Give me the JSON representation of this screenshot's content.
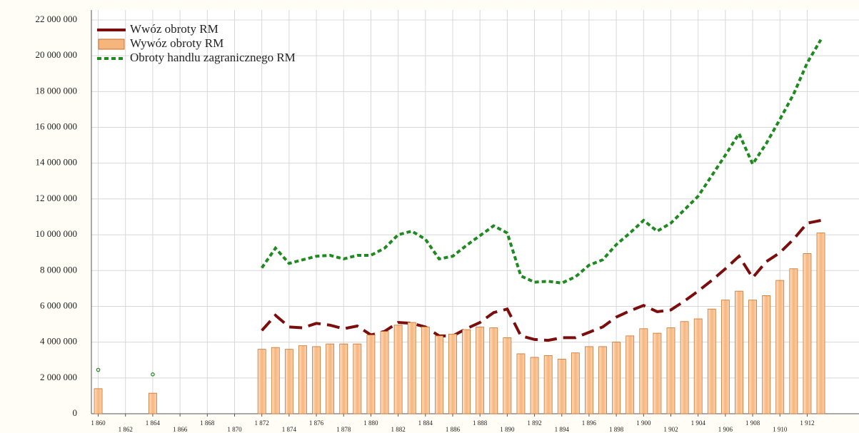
{
  "chart_data": {
    "type": "combo",
    "x": [
      1860,
      1861,
      1862,
      1863,
      1864,
      1865,
      1866,
      1867,
      1868,
      1869,
      1870,
      1871,
      1872,
      1873,
      1874,
      1875,
      1876,
      1877,
      1878,
      1879,
      1880,
      1881,
      1882,
      1883,
      1884,
      1885,
      1886,
      1887,
      1888,
      1889,
      1890,
      1891,
      1892,
      1893,
      1894,
      1895,
      1896,
      1897,
      1898,
      1899,
      1900,
      1901,
      1902,
      1903,
      1904,
      1905,
      1906,
      1907,
      1908,
      1909,
      1910,
      1911,
      1912,
      1913
    ],
    "series": [
      {
        "name": "Wwóz obroty RM",
        "type": "line",
        "dash": "dashed",
        "color": "#7b0d0d",
        "values": [
          null,
          null,
          null,
          null,
          null,
          null,
          null,
          null,
          null,
          null,
          null,
          null,
          4650000,
          5500000,
          4850000,
          4800000,
          5050000,
          4950000,
          4750000,
          4900000,
          4400000,
          4600000,
          5100000,
          5050000,
          4850000,
          4350000,
          4350000,
          4750000,
          5100000,
          5650000,
          5850000,
          4350000,
          4150000,
          4100000,
          4250000,
          4250000,
          4550000,
          4850000,
          5400000,
          5750000,
          6050000,
          5700000,
          5800000,
          6300000,
          6850000,
          7450000,
          8100000,
          8800000,
          7600000,
          8500000,
          9000000,
          9750000,
          10650000,
          10800000
        ]
      },
      {
        "name": "Wywóz obroty RM",
        "type": "bar",
        "color": "#f7b57e",
        "values": [
          1400000,
          null,
          null,
          null,
          1150000,
          null,
          null,
          null,
          null,
          null,
          null,
          null,
          3600000,
          3700000,
          3600000,
          3800000,
          3750000,
          3900000,
          3900000,
          3900000,
          4400000,
          4600000,
          4950000,
          5100000,
          4850000,
          4350000,
          4450000,
          4700000,
          4850000,
          4800000,
          4250000,
          3350000,
          3150000,
          3250000,
          3050000,
          3400000,
          3750000,
          3750000,
          4000000,
          4350000,
          4750000,
          4500000,
          4800000,
          5150000,
          5300000,
          5850000,
          6350000,
          6850000,
          6350000,
          6600000,
          7450000,
          8100000,
          8950000,
          10100000
        ]
      },
      {
        "name": "Obroty handlu zagranicznego RM",
        "type": "line",
        "dash": "dotted",
        "color": "#1f8a1f",
        "values": [
          2450000,
          null,
          null,
          null,
          2200000,
          null,
          null,
          null,
          null,
          null,
          null,
          null,
          8150000,
          9250000,
          8400000,
          8600000,
          8800000,
          8850000,
          8650000,
          8850000,
          8850000,
          9250000,
          10000000,
          10200000,
          9750000,
          8650000,
          8800000,
          9400000,
          9950000,
          10500000,
          10100000,
          7700000,
          7350000,
          7400000,
          7300000,
          7650000,
          8300000,
          8600000,
          9450000,
          10100000,
          10800000,
          10200000,
          10650000,
          11400000,
          12150000,
          13300000,
          14450000,
          15650000,
          13950000,
          15100000,
          16450000,
          17850000,
          19600000,
          20900000
        ]
      }
    ],
    "xlim": [
      1859.5,
      1915.8
    ],
    "xticks": [
      {
        "value": 1860,
        "label": "1 860"
      },
      {
        "value": 1862,
        "label": "1 862"
      },
      {
        "value": 1864,
        "label": "1 864"
      },
      {
        "value": 1866,
        "label": "1 866"
      },
      {
        "value": 1868,
        "label": "1 868"
      },
      {
        "value": 1870,
        "label": "1 870"
      },
      {
        "value": 1872,
        "label": "1 872"
      },
      {
        "value": 1874,
        "label": "1 874"
      },
      {
        "value": 1876,
        "label": "1 876"
      },
      {
        "value": 1878,
        "label": "1 878"
      },
      {
        "value": 1880,
        "label": "1 880"
      },
      {
        "value": 1882,
        "label": "1 882"
      },
      {
        "value": 1884,
        "label": "1 884"
      },
      {
        "value": 1886,
        "label": "1 886"
      },
      {
        "value": 1888,
        "label": "1 888"
      },
      {
        "value": 1890,
        "label": "1 890"
      },
      {
        "value": 1892,
        "label": "1 892"
      },
      {
        "value": 1894,
        "label": "1 894"
      },
      {
        "value": 1896,
        "label": "1 896"
      },
      {
        "value": 1898,
        "label": "1 898"
      },
      {
        "value": 1900,
        "label": "1 900"
      },
      {
        "value": 1902,
        "label": "1 902"
      },
      {
        "value": 1904,
        "label": "1 904"
      },
      {
        "value": 1906,
        "label": "1 906"
      },
      {
        "value": 1908,
        "label": "1 908"
      },
      {
        "value": 1910,
        "label": "1 910"
      },
      {
        "value": 1912,
        "label": "1 912"
      }
    ],
    "ylim": [
      0,
      22000000
    ],
    "yticks": [
      0,
      {
        "value": 2000000,
        "label": "2 000 000"
      },
      {
        "value": 4000000,
        "label": "4 000 000"
      },
      {
        "value": 6000000,
        "label": "6 000 000"
      },
      {
        "value": 8000000,
        "label": "8 000 000"
      },
      {
        "value": 10000000,
        "label": "10 000 000"
      },
      {
        "value": 12000000,
        "label": "12 000 000"
      },
      {
        "value": 14000000,
        "label": "14 000 000"
      },
      {
        "value": 16000000,
        "label": "16 000 000"
      },
      {
        "value": 18000000,
        "label": "18 000 000"
      },
      {
        "value": 20000000,
        "label": "20 000 000"
      },
      {
        "value": 22000000,
        "label": "22 000 000"
      }
    ],
    "grid": true,
    "legend": "top-left"
  }
}
